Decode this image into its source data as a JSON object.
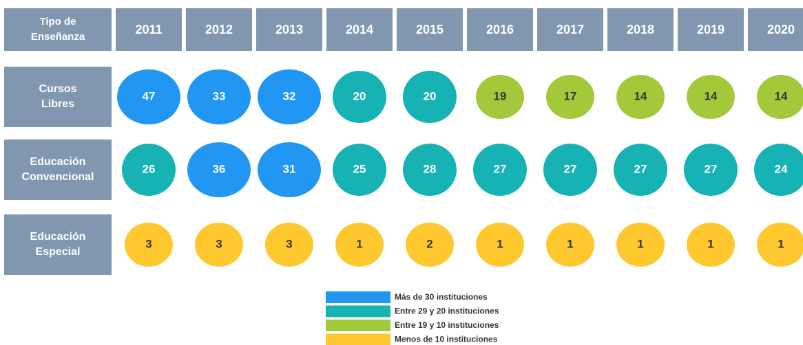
{
  "table": {
    "header": [
      "Tipo de Enseñanza",
      "2011",
      "2012",
      "2013",
      "2014",
      "2015",
      "2016",
      "2017",
      "2018",
      "2019",
      "2020"
    ],
    "rows": [
      {
        "label": "Cursos Libres",
        "values": [
          47,
          33,
          32,
          20,
          20,
          19,
          17,
          14,
          14,
          14
        ],
        "colors": [
          "#2196f3",
          "#2196f3",
          "#2196f3",
          "#16b2b4",
          "#16b2b4",
          "#a2c93a",
          "#a2c93a",
          "#a2c93a",
          "#a2c93a",
          "#a2c93a"
        ]
      },
      {
        "label": "Educación Convencional",
        "values": [
          26,
          36,
          31,
          25,
          28,
          27,
          27,
          27,
          27,
          24
        ],
        "colors": [
          "#16b2b4",
          "#2196f3",
          "#2196f3",
          "#16b2b4",
          "#16b2b4",
          "#16b2b4",
          "#16b2b4",
          "#16b2b4",
          "#16b2b4",
          "#16b2b4"
        ]
      },
      {
        "label": "Educación Especial",
        "values": [
          3,
          3,
          3,
          1,
          2,
          1,
          1,
          1,
          1,
          1
        ],
        "colors": [
          "#fec82e",
          "#fec82e",
          "#fec82e",
          "#fec82e",
          "#fec82e",
          "#fec82e",
          "#fec82e",
          "#fec82e",
          "#fec82e",
          "#fec82e"
        ]
      }
    ],
    "legend": [
      {
        "label": "Más de 30 instituciones",
        "color": "#2196f3"
      },
      {
        "label": "Entre 29 y 20 instituciones",
        "color": "#16b2b4"
      },
      {
        "label": "Entre 19 y 10 instituciones",
        "color": "#a2c93a"
      },
      {
        "label": "Menos de 10 instituciones",
        "color": "#fec82e"
      }
    ]
  }
}
